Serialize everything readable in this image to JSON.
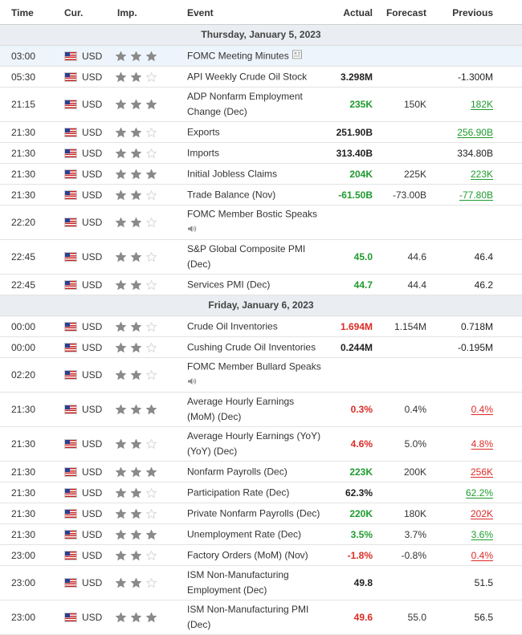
{
  "colors": {
    "positive": "#1e9b2e",
    "negative": "#dc2b25",
    "star_on": "#8a8a8a",
    "star_off": "#d9d9d9",
    "highlight_row": "#eef4fb",
    "day_row": "#eaedf1"
  },
  "header": {
    "time": "Time",
    "currency": "Cur.",
    "importance": "Imp.",
    "event": "Event",
    "actual": "Actual",
    "forecast": "Forecast",
    "previous": "Previous"
  },
  "days": [
    {
      "label": "Thursday, January 5, 2023",
      "events": [
        {
          "time": "03:00",
          "currency": "USD",
          "stars": 3,
          "event": "FOMC Meeting Minutes",
          "icon": "document-icon",
          "actual": "",
          "actual_tone": "neu",
          "forecast": "",
          "previous": "",
          "previous_tone": "neu",
          "highlight": true
        },
        {
          "time": "05:30",
          "currency": "USD",
          "stars": 2,
          "event": "API Weekly Crude Oil Stock",
          "actual": "3.298M",
          "actual_tone": "neu",
          "forecast": "",
          "previous": "-1.300M",
          "previous_tone": "neu"
        },
        {
          "time": "21:15",
          "currency": "USD",
          "stars": 3,
          "event": "ADP Nonfarm Employment Change (Dec)",
          "actual": "235K",
          "actual_tone": "pos",
          "forecast": "150K",
          "previous": "182K",
          "previous_tone": "pos"
        },
        {
          "time": "21:30",
          "currency": "USD",
          "stars": 2,
          "event": "Exports",
          "actual": "251.90B",
          "actual_tone": "neu",
          "forecast": "",
          "previous": "256.90B",
          "previous_tone": "pos"
        },
        {
          "time": "21:30",
          "currency": "USD",
          "stars": 2,
          "event": "Imports",
          "actual": "313.40B",
          "actual_tone": "neu",
          "forecast": "",
          "previous": "334.80B",
          "previous_tone": "neu"
        },
        {
          "time": "21:30",
          "currency": "USD",
          "stars": 3,
          "event": "Initial Jobless Claims",
          "actual": "204K",
          "actual_tone": "pos",
          "forecast": "225K",
          "previous": "223K",
          "previous_tone": "pos"
        },
        {
          "time": "21:30",
          "currency": "USD",
          "stars": 2,
          "event": "Trade Balance (Nov)",
          "actual": "-61.50B",
          "actual_tone": "pos",
          "forecast": "-73.00B",
          "previous": "-77.80B",
          "previous_tone": "pos"
        },
        {
          "time": "22:20",
          "currency": "USD",
          "stars": 2,
          "event": "FOMC Member Bostic Speaks",
          "icon": "speaker-icon",
          "actual": "",
          "actual_tone": "neu",
          "forecast": "",
          "previous": "",
          "previous_tone": "neu"
        },
        {
          "time": "22:45",
          "currency": "USD",
          "stars": 2,
          "event": "S&P Global Composite PMI (Dec)",
          "actual": "45.0",
          "actual_tone": "pos",
          "forecast": "44.6",
          "previous": "46.4",
          "previous_tone": "neu"
        },
        {
          "time": "22:45",
          "currency": "USD",
          "stars": 2,
          "event": "Services PMI (Dec)",
          "actual": "44.7",
          "actual_tone": "pos",
          "forecast": "44.4",
          "previous": "46.2",
          "previous_tone": "neu"
        }
      ]
    },
    {
      "label": "Friday, January 6, 2023",
      "events": [
        {
          "time": "00:00",
          "currency": "USD",
          "stars": 2,
          "event": "Crude Oil Inventories",
          "actual": "1.694M",
          "actual_tone": "neg",
          "forecast": "1.154M",
          "previous": "0.718M",
          "previous_tone": "neu"
        },
        {
          "time": "00:00",
          "currency": "USD",
          "stars": 2,
          "event": "Cushing Crude Oil Inventories",
          "actual": "0.244M",
          "actual_tone": "neu",
          "forecast": "",
          "previous": "-0.195M",
          "previous_tone": "neu"
        },
        {
          "time": "02:20",
          "currency": "USD",
          "stars": 2,
          "event": "FOMC Member Bullard Speaks",
          "icon": "speaker-icon",
          "actual": "",
          "actual_tone": "neu",
          "forecast": "",
          "previous": "",
          "previous_tone": "neu"
        },
        {
          "time": "21:30",
          "currency": "USD",
          "stars": 3,
          "event": "Average Hourly Earnings (MoM) (Dec)",
          "actual": "0.3%",
          "actual_tone": "neg",
          "forecast": "0.4%",
          "previous": "0.4%",
          "previous_tone": "neg"
        },
        {
          "time": "21:30",
          "currency": "USD",
          "stars": 2,
          "event": "Average Hourly Earnings (YoY) (YoY) (Dec)",
          "actual": "4.6%",
          "actual_tone": "neg",
          "forecast": "5.0%",
          "previous": "4.8%",
          "previous_tone": "neg"
        },
        {
          "time": "21:30",
          "currency": "USD",
          "stars": 3,
          "event": "Nonfarm Payrolls (Dec)",
          "actual": "223K",
          "actual_tone": "pos",
          "forecast": "200K",
          "previous": "256K",
          "previous_tone": "neg"
        },
        {
          "time": "21:30",
          "currency": "USD",
          "stars": 2,
          "event": "Participation Rate (Dec)",
          "actual": "62.3%",
          "actual_tone": "neu",
          "forecast": "",
          "previous": "62.2%",
          "previous_tone": "pos"
        },
        {
          "time": "21:30",
          "currency": "USD",
          "stars": 2,
          "event": "Private Nonfarm Payrolls (Dec)",
          "actual": "220K",
          "actual_tone": "pos",
          "forecast": "180K",
          "previous": "202K",
          "previous_tone": "neg"
        },
        {
          "time": "21:30",
          "currency": "USD",
          "stars": 3,
          "event": "Unemployment Rate (Dec)",
          "actual": "3.5%",
          "actual_tone": "pos",
          "forecast": "3.7%",
          "previous": "3.6%",
          "previous_tone": "pos"
        },
        {
          "time": "23:00",
          "currency": "USD",
          "stars": 2,
          "event": "Factory Orders (MoM) (Nov)",
          "actual": "-1.8%",
          "actual_tone": "neg",
          "forecast": "-0.8%",
          "previous": "0.4%",
          "previous_tone": "neg"
        },
        {
          "time": "23:00",
          "currency": "USD",
          "stars": 2,
          "event": "ISM Non-Manufacturing Employment (Dec)",
          "actual": "49.8",
          "actual_tone": "neu",
          "forecast": "",
          "previous": "51.5",
          "previous_tone": "neu"
        },
        {
          "time": "23:00",
          "currency": "USD",
          "stars": 3,
          "event": "ISM Non-Manufacturing PMI (Dec)",
          "actual": "49.6",
          "actual_tone": "neg",
          "forecast": "55.0",
          "previous": "56.5",
          "previous_tone": "neu"
        }
      ]
    }
  ]
}
